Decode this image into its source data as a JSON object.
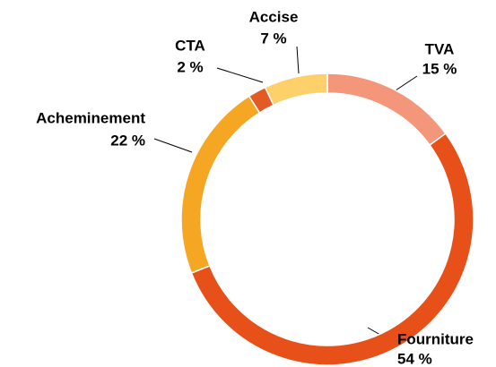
{
  "chart_data": {
    "type": "donut",
    "categories": [
      "TVA",
      "Fourniture",
      "Acheminement",
      "CTA",
      "Accise"
    ],
    "values": [
      15,
      54,
      22,
      2,
      7
    ],
    "value_labels": [
      "15 %",
      "54 %",
      "22 %",
      "2 %",
      "7 %"
    ],
    "colors": [
      "#f4967a",
      "#e8501a",
      "#f5a623",
      "#e35a25",
      "#fdd06a"
    ]
  }
}
